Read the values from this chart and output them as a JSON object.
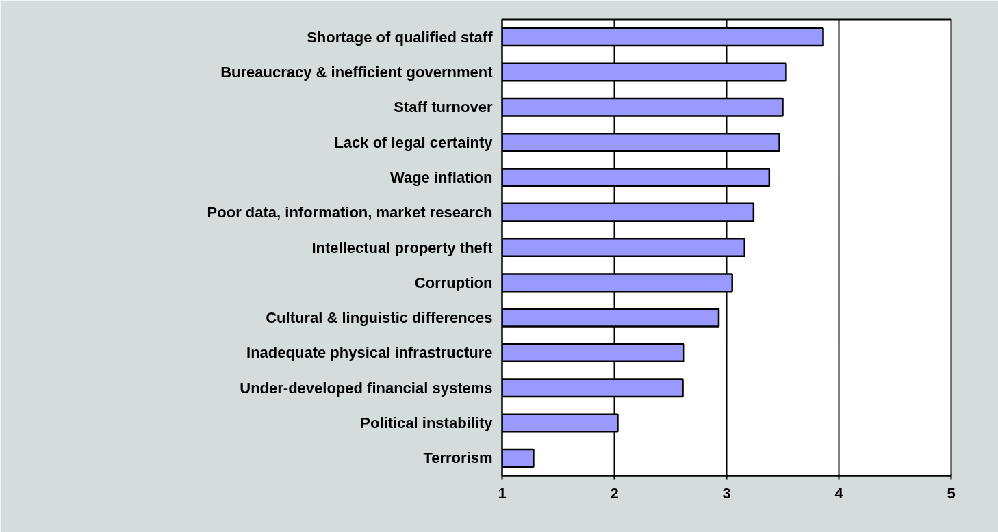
{
  "chart_data": {
    "type": "bar",
    "orientation": "horizontal",
    "categories": [
      "Shortage of qualified staff",
      "Bureaucracy & inefficient government",
      "Staff turnover",
      "Lack of legal certainty",
      "Wage inflation",
      "Poor data, information, market research",
      "Intellectual property theft",
      "Corruption",
      "Cultural & linguistic differences",
      "Inadequate physical infrastructure",
      "Under-developed financial systems",
      "Political instability",
      "Terrorism"
    ],
    "values": [
      3.86,
      3.53,
      3.5,
      3.47,
      3.38,
      3.24,
      3.16,
      3.05,
      2.93,
      2.62,
      2.61,
      2.03,
      1.28
    ],
    "color": "#9999ff",
    "xlim": [
      1,
      5
    ],
    "xticks": [
      1,
      2,
      3,
      4,
      5
    ],
    "grid": "x"
  }
}
